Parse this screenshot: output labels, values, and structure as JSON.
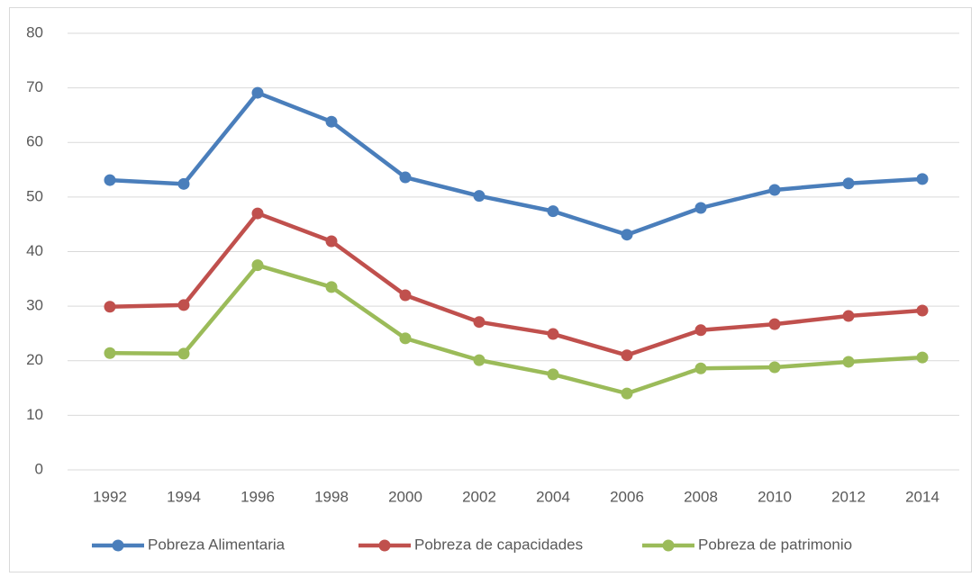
{
  "chart_data": {
    "type": "line",
    "categories": [
      "1992",
      "1994",
      "1996",
      "1998",
      "2000",
      "2002",
      "2004",
      "2006",
      "2008",
      "2010",
      "2012",
      "2014"
    ],
    "series": [
      {
        "name": "Pobreza Alimentaria",
        "color": "#4a7ebb",
        "values": [
          53.1,
          52.4,
          69.1,
          63.8,
          53.6,
          50.2,
          47.4,
          43.1,
          48.0,
          51.3,
          52.5,
          53.3
        ]
      },
      {
        "name": "Pobreza de capacidades",
        "color": "#c0504d",
        "values": [
          29.9,
          30.2,
          47.0,
          41.9,
          32.0,
          27.1,
          24.9,
          21.0,
          25.6,
          26.7,
          28.2,
          29.2
        ]
      },
      {
        "name": "Pobreza de patrimonio",
        "color": "#9bbb59",
        "values": [
          21.4,
          21.3,
          37.5,
          33.5,
          24.1,
          20.1,
          17.5,
          14.0,
          18.6,
          18.8,
          19.8,
          20.6
        ]
      }
    ],
    "ylim": [
      0,
      80
    ],
    "yticks": [
      0,
      10,
      20,
      30,
      40,
      50,
      60,
      70,
      80
    ],
    "grid": true,
    "legend": "bottom"
  }
}
